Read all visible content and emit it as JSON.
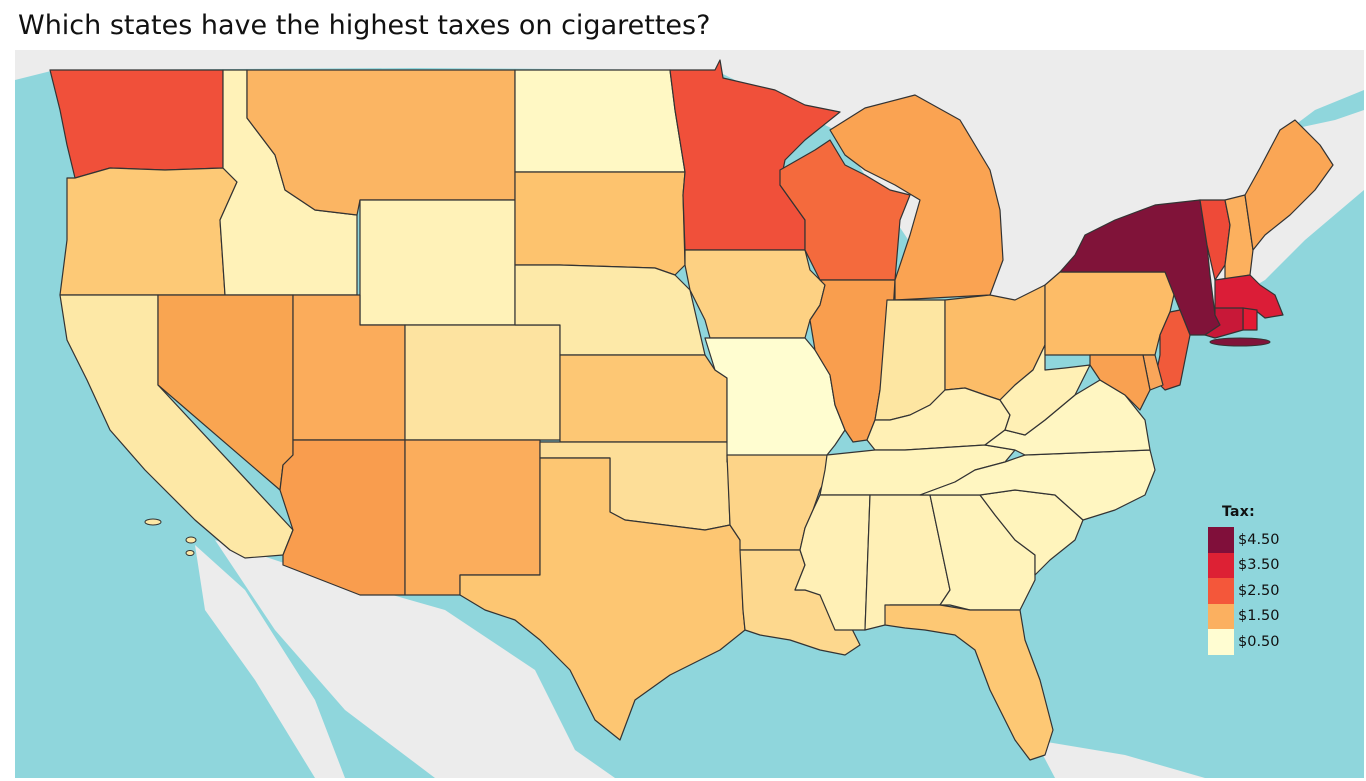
{
  "title": "Which states have the highest taxes on cigarettes?",
  "legend": {
    "title": "Tax:",
    "items": [
      {
        "label": "$4.50",
        "color": "#800f3a"
      },
      {
        "label": "$3.50",
        "color": "#dd2134"
      },
      {
        "label": "$2.50",
        "color": "#f4573a"
      },
      {
        "label": "$1.50",
        "color": "#fbb060"
      },
      {
        "label": "$0.50",
        "color": "#fffdd2"
      }
    ]
  },
  "palette": {
    "ocean": "#8fd6dc",
    "land": "#ececec",
    "border": "#333333"
  },
  "states": [
    {
      "code": "WA",
      "tax": 3.0,
      "color": "#f0503a"
    },
    {
      "code": "OR",
      "tax": 1.3,
      "color": "#fdc976"
    },
    {
      "code": "CA",
      "tax": 0.9,
      "color": "#fde8a6"
    },
    {
      "code": "ID",
      "tax": 0.6,
      "color": "#fff2b8"
    },
    {
      "code": "NV",
      "tax": 1.8,
      "color": "#f9a551"
    },
    {
      "code": "MT",
      "tax": 1.7,
      "color": "#fbb563"
    },
    {
      "code": "WY",
      "tax": 0.6,
      "color": "#fff2b8"
    },
    {
      "code": "UT",
      "tax": 1.7,
      "color": "#fbac5b"
    },
    {
      "code": "AZ",
      "tax": 2.0,
      "color": "#f99d4e"
    },
    {
      "code": "CO",
      "tax": 0.8,
      "color": "#fde3a0"
    },
    {
      "code": "NM",
      "tax": 1.7,
      "color": "#fbad5c"
    },
    {
      "code": "ND",
      "tax": 0.4,
      "color": "#fff8c4"
    },
    {
      "code": "SD",
      "tax": 1.5,
      "color": "#fdc36e"
    },
    {
      "code": "NE",
      "tax": 0.6,
      "color": "#fde9a8"
    },
    {
      "code": "KS",
      "tax": 1.3,
      "color": "#fdc774"
    },
    {
      "code": "OK",
      "tax": 1.0,
      "color": "#fdde98"
    },
    {
      "code": "TX",
      "tax": 1.4,
      "color": "#fdc672"
    },
    {
      "code": "MN",
      "tax": 3.0,
      "color": "#f0503a"
    },
    {
      "code": "IA",
      "tax": 1.4,
      "color": "#fdd183"
    },
    {
      "code": "MO",
      "tax": 0.2,
      "color": "#fffdd0"
    },
    {
      "code": "AR",
      "tax": 1.2,
      "color": "#fdd488"
    },
    {
      "code": "LA",
      "tax": 1.1,
      "color": "#fdd88e"
    },
    {
      "code": "WI",
      "tax": 2.5,
      "color": "#f46a3d"
    },
    {
      "code": "IL",
      "tax": 2.0,
      "color": "#f99e4e"
    },
    {
      "code": "MI",
      "tax": 2.0,
      "color": "#faa352"
    },
    {
      "code": "IN",
      "tax": 1.0,
      "color": "#fde6a2"
    },
    {
      "code": "OH",
      "tax": 1.6,
      "color": "#fcbd68"
    },
    {
      "code": "KY",
      "tax": 0.6,
      "color": "#fff0b5"
    },
    {
      "code": "TN",
      "tax": 0.6,
      "color": "#fff4bc"
    },
    {
      "code": "MS",
      "tax": 0.7,
      "color": "#fff0b6"
    },
    {
      "code": "AL",
      "tax": 0.7,
      "color": "#fff0b6"
    },
    {
      "code": "GA",
      "tax": 0.4,
      "color": "#fff3bb"
    },
    {
      "code": "FL",
      "tax": 1.3,
      "color": "#fdc874"
    },
    {
      "code": "SC",
      "tax": 0.6,
      "color": "#fff4bc"
    },
    {
      "code": "NC",
      "tax": 0.5,
      "color": "#fff6c1"
    },
    {
      "code": "VA",
      "tax": 0.3,
      "color": "#fff6c2"
    },
    {
      "code": "WV",
      "tax": 1.2,
      "color": "#fff0b5"
    },
    {
      "code": "PA",
      "tax": 1.6,
      "color": "#fdbc67"
    },
    {
      "code": "NY",
      "tax": 4.35,
      "color": "#801339"
    },
    {
      "code": "VT",
      "tax": 3.1,
      "color": "#ee4a38"
    },
    {
      "code": "NH",
      "tax": 1.8,
      "color": "#fcb05e"
    },
    {
      "code": "ME",
      "tax": 2.0,
      "color": "#faa655"
    },
    {
      "code": "MA",
      "tax": 3.5,
      "color": "#db1d37"
    },
    {
      "code": "RI",
      "tax": 3.5,
      "color": "#e31a33"
    },
    {
      "code": "CT",
      "tax": 3.9,
      "color": "#c81838"
    },
    {
      "code": "NJ",
      "tax": 2.7,
      "color": "#f15a3a"
    },
    {
      "code": "DE",
      "tax": 1.6,
      "color": "#f9a65a"
    },
    {
      "code": "MD",
      "tax": 2.0,
      "color": "#f9a151"
    }
  ]
}
